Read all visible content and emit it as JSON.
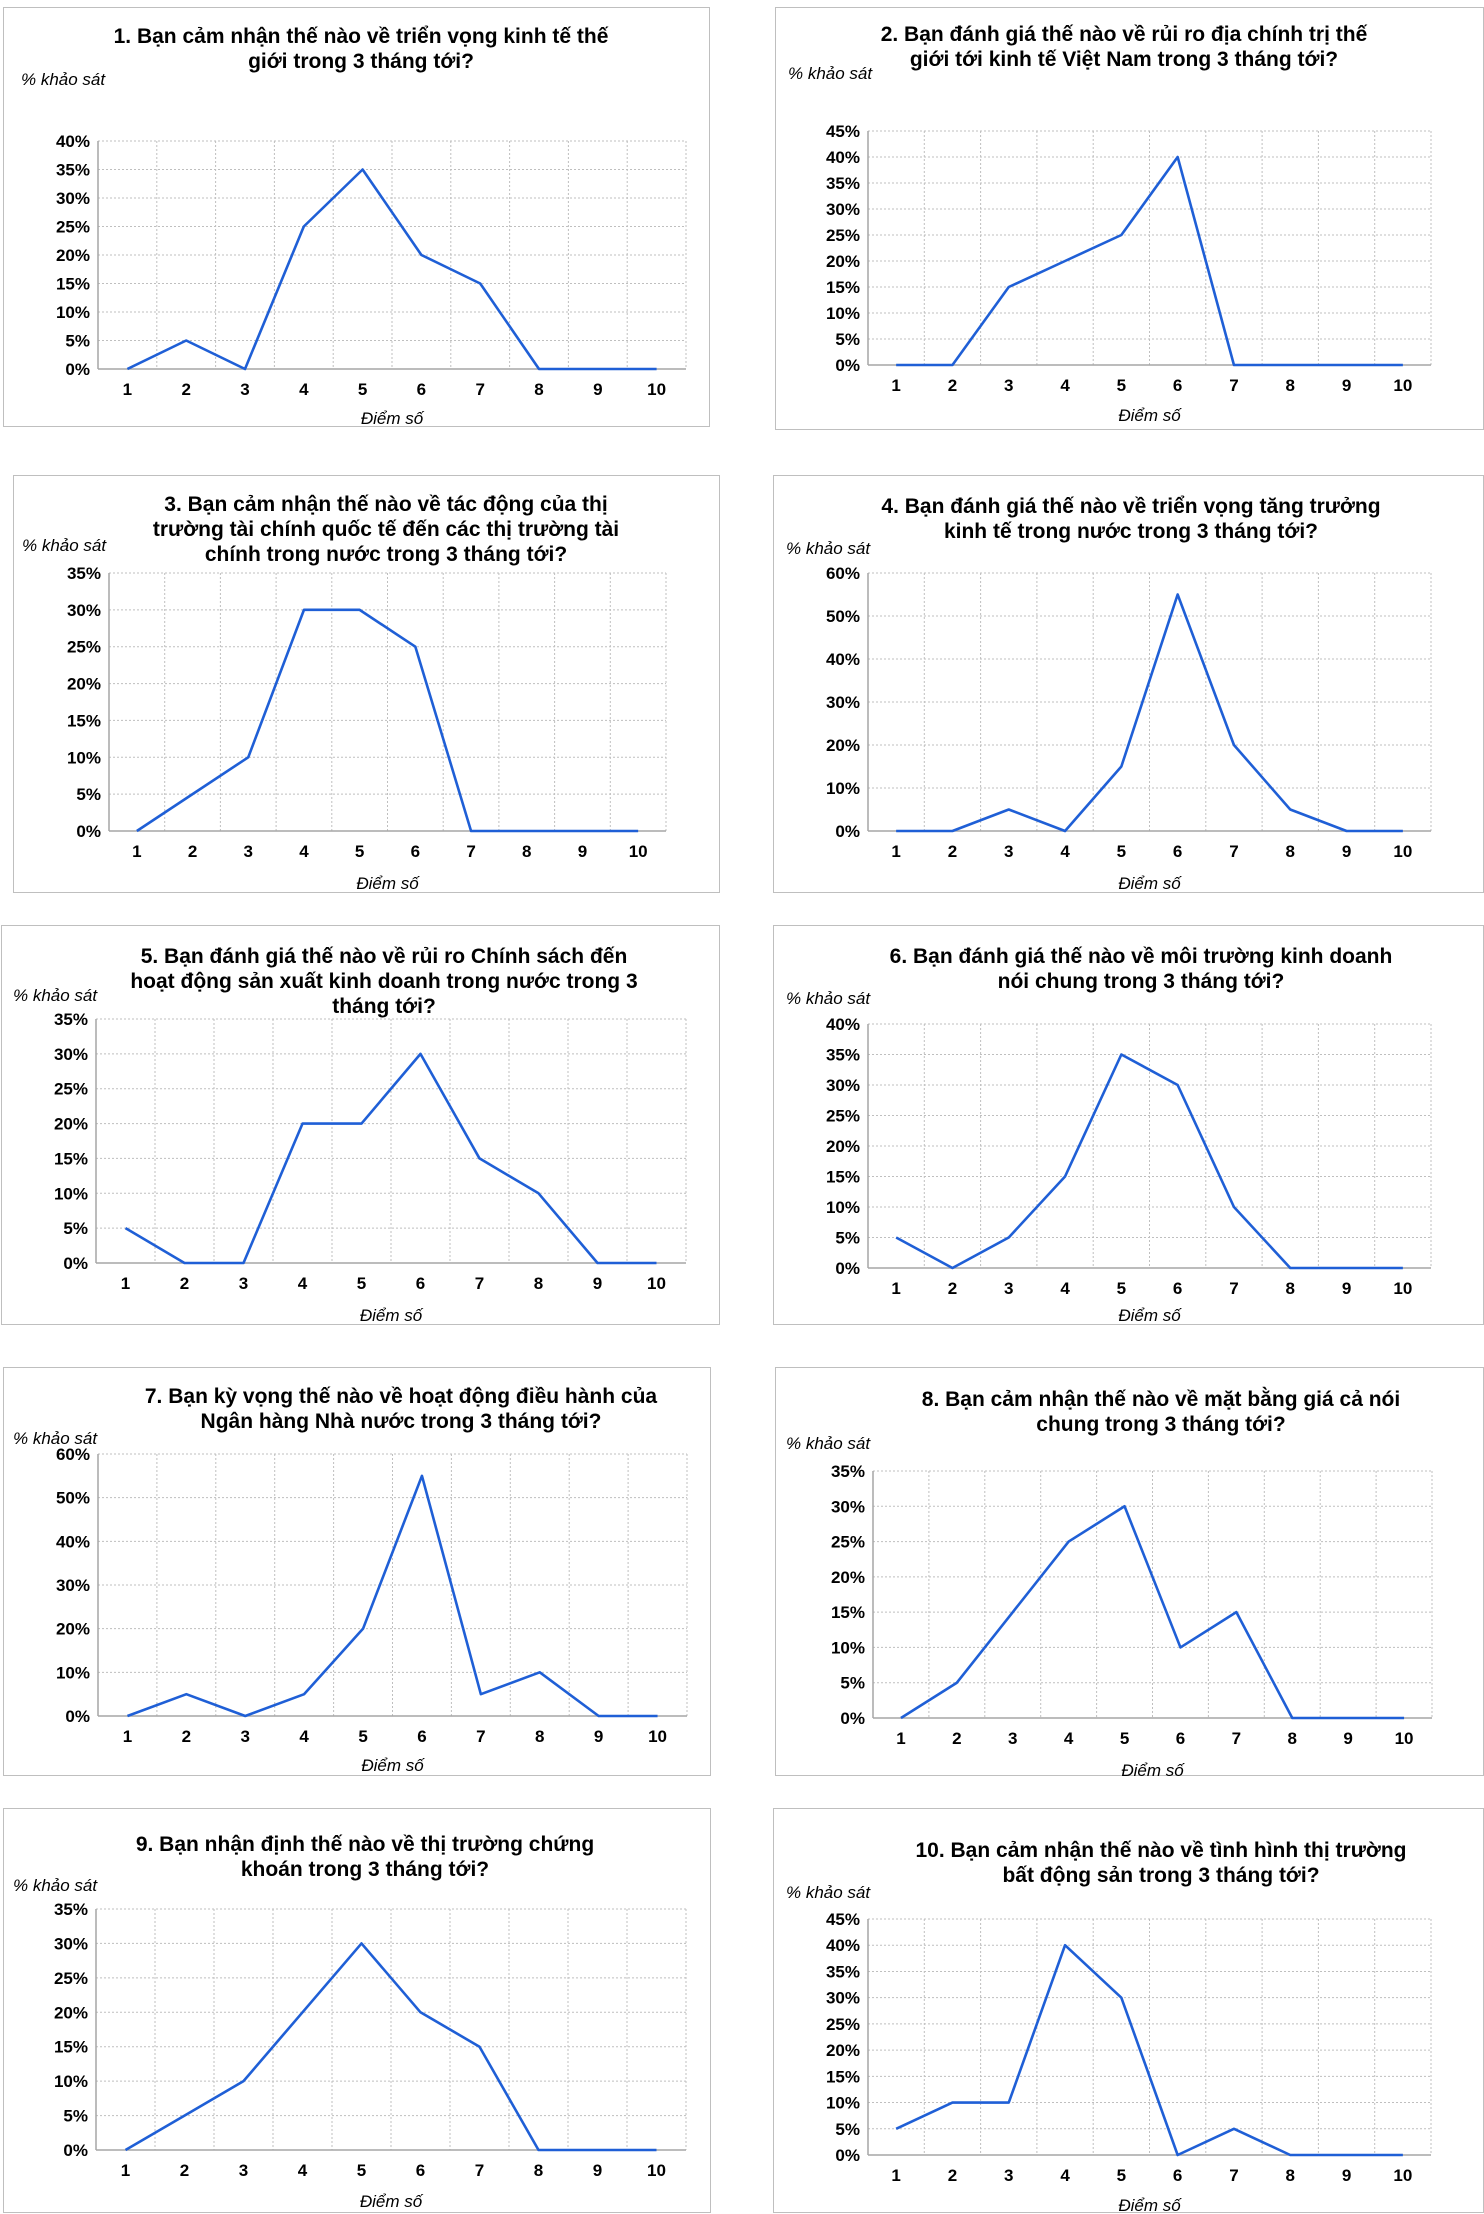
{
  "colors": {
    "series": "#1f5fd6",
    "grid": "#bfbfbf",
    "axis": "#a6a6a6",
    "border": "#bfbfbf"
  },
  "chart_data": [
    {
      "type": "line",
      "title": [
        "1. Bạn cảm nhận thế nào về triển vọng kinh tế thế",
        "giới trong 3 tháng tới?"
      ],
      "ylabel": "% khảo sát",
      "xlabel": "Điểm số",
      "categories": [
        "1",
        "2",
        "3",
        "4",
        "5",
        "6",
        "7",
        "8",
        "9",
        "10"
      ],
      "yticks": [
        "0%",
        "5%",
        "10%",
        "15%",
        "20%",
        "25%",
        "30%",
        "35%",
        "40%"
      ],
      "ylim": [
        0,
        40
      ],
      "grid": true,
      "values": [
        0,
        5,
        0,
        25,
        35,
        20,
        15,
        0,
        0,
        0
      ]
    },
    {
      "type": "line",
      "title": [
        "2. Bạn đánh giá thế nào về rủi ro địa chính trị thế",
        "giới tới kinh tế Việt Nam trong 3 tháng tới?"
      ],
      "ylabel": "% khảo sát",
      "xlabel": "Điểm số",
      "categories": [
        "1",
        "2",
        "3",
        "4",
        "5",
        "6",
        "7",
        "8",
        "9",
        "10"
      ],
      "yticks": [
        "0%",
        "5%",
        "10%",
        "15%",
        "20%",
        "25%",
        "30%",
        "35%",
        "40%",
        "45%"
      ],
      "ylim": [
        0,
        45
      ],
      "grid": true,
      "values": [
        0,
        0,
        15,
        20,
        25,
        40,
        0,
        0,
        0,
        0
      ]
    },
    {
      "type": "line",
      "title": [
        "3. Bạn cảm nhận thế nào về tác động của thị",
        "trường tài chính quốc tế đến các thị trường tài",
        "chính trong nước trong 3 tháng tới?"
      ],
      "ylabel": "% khảo sát",
      "xlabel": "Điểm số",
      "categories": [
        "1",
        "2",
        "3",
        "4",
        "5",
        "6",
        "7",
        "8",
        "9",
        "10"
      ],
      "yticks": [
        "0%",
        "5%",
        "10%",
        "15%",
        "20%",
        "25%",
        "30%",
        "35%"
      ],
      "ylim": [
        0,
        35
      ],
      "grid": true,
      "values": [
        0,
        5,
        10,
        30,
        30,
        25,
        0,
        0,
        0,
        0
      ]
    },
    {
      "type": "line",
      "title": [
        "4. Bạn đánh giá thế nào về triển vọng tăng trưởng",
        "kinh tế trong nước trong 3 tháng tới?"
      ],
      "ylabel": "% khảo sát",
      "xlabel": "Điểm số",
      "categories": [
        "1",
        "2",
        "3",
        "4",
        "5",
        "6",
        "7",
        "8",
        "9",
        "10"
      ],
      "yticks": [
        "0%",
        "10%",
        "20%",
        "30%",
        "40%",
        "50%",
        "60%"
      ],
      "ylim": [
        0,
        60
      ],
      "grid": true,
      "values": [
        0,
        0,
        5,
        0,
        15,
        55,
        20,
        5,
        0,
        0
      ]
    },
    {
      "type": "line",
      "title": [
        "5. Bạn đánh giá thế nào về rủi ro Chính sách đến",
        "hoạt động sản xuất kinh doanh trong nước trong 3",
        "tháng tới?"
      ],
      "ylabel": "% khảo sát",
      "xlabel": "Điểm số",
      "categories": [
        "1",
        "2",
        "3",
        "4",
        "5",
        "6",
        "7",
        "8",
        "9",
        "10"
      ],
      "yticks": [
        "0%",
        "5%",
        "10%",
        "15%",
        "20%",
        "25%",
        "30%",
        "35%"
      ],
      "ylim": [
        0,
        35
      ],
      "grid": true,
      "values": [
        5,
        0,
        0,
        20,
        20,
        30,
        15,
        10,
        0,
        0
      ]
    },
    {
      "type": "line",
      "title": [
        "6. Bạn đánh giá thế nào về môi trường kinh doanh",
        "nói chung trong 3 tháng tới?"
      ],
      "ylabel": "% khảo sát",
      "xlabel": "Điểm số",
      "categories": [
        "1",
        "2",
        "3",
        "4",
        "5",
        "6",
        "7",
        "8",
        "9",
        "10"
      ],
      "yticks": [
        "0%",
        "5%",
        "10%",
        "15%",
        "20%",
        "25%",
        "30%",
        "35%",
        "40%"
      ],
      "ylim": [
        0,
        40
      ],
      "grid": true,
      "values": [
        5,
        0,
        5,
        15,
        35,
        30,
        10,
        0,
        0,
        0
      ]
    },
    {
      "type": "line",
      "title": [
        "7. Bạn kỳ vọng thế nào về hoạt động điều hành của",
        "Ngân hàng Nhà nước trong 3 tháng tới?"
      ],
      "ylabel": "% khảo sát",
      "xlabel": "Điểm số",
      "categories": [
        "1",
        "2",
        "3",
        "4",
        "5",
        "6",
        "7",
        "8",
        "9",
        "10"
      ],
      "yticks": [
        "0%",
        "10%",
        "20%",
        "30%",
        "40%",
        "50%",
        "60%"
      ],
      "ylim": [
        0,
        60
      ],
      "grid": true,
      "values": [
        0,
        5,
        0,
        5,
        20,
        55,
        5,
        10,
        0,
        0
      ]
    },
    {
      "type": "line",
      "title": [
        "8. Bạn cảm nhận thế nào về mặt bằng giá cả nói",
        "chung trong 3 tháng tới?"
      ],
      "ylabel": "% khảo sát",
      "xlabel": "Điểm số",
      "categories": [
        "1",
        "2",
        "3",
        "4",
        "5",
        "6",
        "7",
        "8",
        "9",
        "10"
      ],
      "yticks": [
        "0%",
        "5%",
        "10%",
        "15%",
        "20%",
        "25%",
        "30%",
        "35%"
      ],
      "ylim": [
        0,
        35
      ],
      "grid": true,
      "values": [
        0,
        5,
        15,
        25,
        30,
        10,
        15,
        0,
        0,
        0
      ]
    },
    {
      "type": "line",
      "title": [
        "9. Bạn nhận định thế nào về thị trường chứng",
        "khoán trong 3 tháng tới?"
      ],
      "ylabel": "% khảo sát",
      "xlabel": "Điểm số",
      "categories": [
        "1",
        "2",
        "3",
        "4",
        "5",
        "6",
        "7",
        "8",
        "9",
        "10"
      ],
      "yticks": [
        "0%",
        "5%",
        "10%",
        "15%",
        "20%",
        "25%",
        "30%",
        "35%"
      ],
      "ylim": [
        0,
        35
      ],
      "grid": true,
      "values": [
        0,
        5,
        10,
        20,
        30,
        20,
        15,
        0,
        0,
        0
      ]
    },
    {
      "type": "line",
      "title": [
        "10. Bạn cảm nhận thế nào về tình hình thị trường",
        "bất động sản trong 3 tháng tới?"
      ],
      "ylabel": "% khảo sát",
      "xlabel": "Điểm số",
      "categories": [
        "1",
        "2",
        "3",
        "4",
        "5",
        "6",
        "7",
        "8",
        "9",
        "10"
      ],
      "yticks": [
        "0%",
        "5%",
        "10%",
        "15%",
        "20%",
        "25%",
        "30%",
        "35%",
        "40%",
        "45%"
      ],
      "ylim": [
        0,
        45
      ],
      "grid": true,
      "values": [
        5,
        10,
        10,
        40,
        30,
        0,
        5,
        0,
        0,
        0
      ]
    }
  ]
}
